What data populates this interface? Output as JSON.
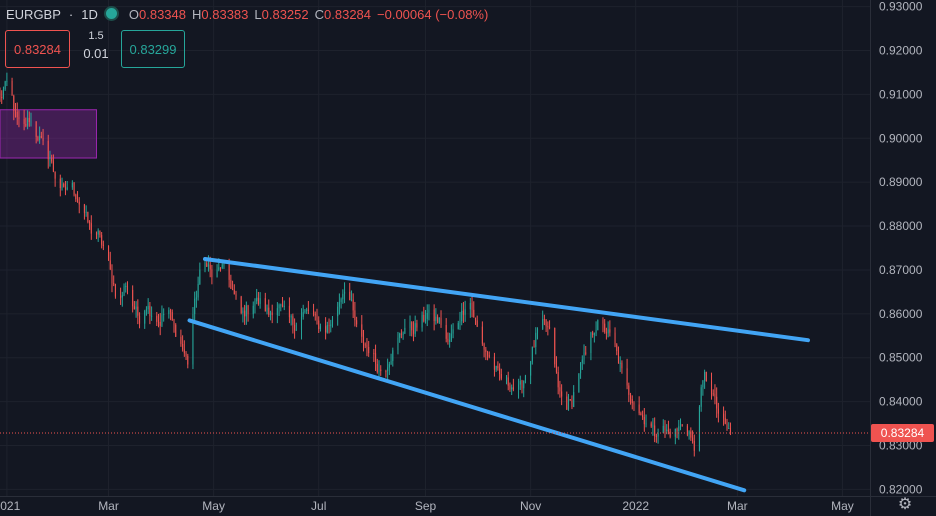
{
  "header": {
    "symbol": "EURGBP",
    "interval": "1D",
    "open_label": "O",
    "open": "0.83348",
    "high_label": "H",
    "high": "0.83383",
    "low_label": "L",
    "low": "0.83252",
    "close_label": "C",
    "close": "0.83284",
    "change": "−0.00064 (−0.08%)"
  },
  "trade": {
    "sell": "0.83284",
    "spread_top": "1.5",
    "spread_bottom": "0.01",
    "buy": "0.83299"
  },
  "colors": {
    "background": "#131722",
    "up": "#26a69a",
    "down": "#ef5350",
    "trendline": "#42a5f5",
    "zone": "#9c27b0",
    "grid": "#1e222d"
  },
  "chart_data": {
    "type": "candlestick",
    "ylim": [
      0.8185,
      0.9315
    ],
    "yticks": [
      "0.93000",
      "0.92000",
      "0.91000",
      "0.90000",
      "0.89000",
      "0.88000",
      "0.87000",
      "0.86000",
      "0.85000",
      "0.84000",
      "0.83000",
      "0.82000"
    ],
    "ytick_values": [
      0.93,
      0.92,
      0.91,
      0.9,
      0.89,
      0.88,
      0.87,
      0.86,
      0.85,
      0.84,
      0.83,
      0.82
    ],
    "xlim": [
      "2020-12-28",
      "2022-05-17"
    ],
    "xticks": [
      {
        "label": "2021",
        "date": "2021-01-01"
      },
      {
        "label": "Mar",
        "date": "2021-03-01"
      },
      {
        "label": "May",
        "date": "2021-05-01"
      },
      {
        "label": "Jul",
        "date": "2021-07-01"
      },
      {
        "label": "Sep",
        "date": "2021-09-01"
      },
      {
        "label": "Nov",
        "date": "2021-11-01"
      },
      {
        "label": "2022",
        "date": "2022-01-01"
      },
      {
        "label": "Mar",
        "date": "2022-03-01"
      },
      {
        "label": "May",
        "date": "2022-05-01"
      }
    ],
    "last_price": "0.83284",
    "last_price_value": 0.83284,
    "close_path": [
      [
        "2020-12-28",
        0.909
      ],
      [
        "2021-01-02",
        0.9135
      ],
      [
        "2021-01-06",
        0.905
      ],
      [
        "2021-01-10",
        0.902
      ],
      [
        "2021-01-14",
        0.9045
      ],
      [
        "2021-01-18",
        0.901
      ],
      [
        "2021-01-22",
        0.8985
      ],
      [
        "2021-01-26",
        0.8955
      ],
      [
        "2021-01-30",
        0.89
      ],
      [
        "2021-02-03",
        0.888
      ],
      [
        "2021-02-07",
        0.89
      ],
      [
        "2021-02-11",
        0.886
      ],
      [
        "2021-02-15",
        0.883
      ],
      [
        "2021-02-19",
        0.879
      ],
      [
        "2021-02-23",
        0.878
      ],
      [
        "2021-02-27",
        0.8745
      ],
      [
        "2021-03-03",
        0.868
      ],
      [
        "2021-03-07",
        0.862
      ],
      [
        "2021-03-11",
        0.867
      ],
      [
        "2021-03-15",
        0.862
      ],
      [
        "2021-03-19",
        0.859
      ],
      [
        "2021-03-23",
        0.862
      ],
      [
        "2021-03-27",
        0.8595
      ],
      [
        "2021-03-31",
        0.858
      ],
      [
        "2021-04-04",
        0.862
      ],
      [
        "2021-04-08",
        0.857
      ],
      [
        "2021-04-12",
        0.853
      ],
      [
        "2021-04-16",
        0.849
      ],
      [
        "2021-04-19",
        0.86
      ],
      [
        "2021-04-23",
        0.869
      ],
      [
        "2021-04-27",
        0.872
      ],
      [
        "2021-05-01",
        0.8675
      ],
      [
        "2021-05-05",
        0.871
      ],
      [
        "2021-05-09",
        0.869
      ],
      [
        "2021-05-13",
        0.864
      ],
      [
        "2021-05-17",
        0.86
      ],
      [
        "2021-05-21",
        0.861
      ],
      [
        "2021-05-25",
        0.863
      ],
      [
        "2021-05-29",
        0.8625
      ],
      [
        "2021-06-02",
        0.86
      ],
      [
        "2021-06-06",
        0.862
      ],
      [
        "2021-06-10",
        0.861
      ],
      [
        "2021-06-14",
        0.859
      ],
      [
        "2021-06-18",
        0.857
      ],
      [
        "2021-06-22",
        0.86
      ],
      [
        "2021-06-26",
        0.861
      ],
      [
        "2021-06-30",
        0.858
      ],
      [
        "2021-07-04",
        0.856
      ],
      [
        "2021-07-08",
        0.858
      ],
      [
        "2021-07-12",
        0.862
      ],
      [
        "2021-07-16",
        0.866
      ],
      [
        "2021-07-20",
        0.862
      ],
      [
        "2021-07-24",
        0.855
      ],
      [
        "2021-07-28",
        0.853
      ],
      [
        "2021-08-01",
        0.851
      ],
      [
        "2021-08-05",
        0.847
      ],
      [
        "2021-08-09",
        0.848
      ],
      [
        "2021-08-13",
        0.851
      ],
      [
        "2021-08-17",
        0.855
      ],
      [
        "2021-08-21",
        0.8575
      ],
      [
        "2021-08-25",
        0.8565
      ],
      [
        "2021-08-29",
        0.858
      ],
      [
        "2021-09-02",
        0.86
      ],
      [
        "2021-09-06",
        0.859
      ],
      [
        "2021-09-10",
        0.858
      ],
      [
        "2021-09-14",
        0.853
      ],
      [
        "2021-09-18",
        0.857
      ],
      [
        "2021-09-22",
        0.86
      ],
      [
        "2021-09-26",
        0.864
      ],
      [
        "2021-09-30",
        0.858
      ],
      [
        "2021-10-04",
        0.853
      ],
      [
        "2021-10-08",
        0.85
      ],
      [
        "2021-10-12",
        0.847
      ],
      [
        "2021-10-16",
        0.845
      ],
      [
        "2021-10-20",
        0.844
      ],
      [
        "2021-10-24",
        0.842
      ],
      [
        "2021-10-28",
        0.845
      ],
      [
        "2021-11-01",
        0.85
      ],
      [
        "2021-11-05",
        0.856
      ],
      [
        "2021-11-09",
        0.858
      ],
      [
        "2021-11-13",
        0.855
      ],
      [
        "2021-11-17",
        0.843
      ],
      [
        "2021-11-21",
        0.839
      ],
      [
        "2021-11-25",
        0.84
      ],
      [
        "2021-11-29",
        0.847
      ],
      [
        "2021-12-03",
        0.851
      ],
      [
        "2021-12-07",
        0.856
      ],
      [
        "2021-12-11",
        0.858
      ],
      [
        "2021-12-15",
        0.856
      ],
      [
        "2021-12-19",
        0.854
      ],
      [
        "2021-12-23",
        0.848
      ],
      [
        "2021-12-27",
        0.843
      ],
      [
        "2021-12-31",
        0.84
      ],
      [
        "2022-01-04",
        0.837
      ],
      [
        "2022-01-08",
        0.835
      ],
      [
        "2022-01-12",
        0.833
      ],
      [
        "2022-01-16",
        0.834
      ],
      [
        "2022-01-20",
        0.833
      ],
      [
        "2022-01-24",
        0.833
      ],
      [
        "2022-01-28",
        0.835
      ],
      [
        "2022-02-01",
        0.833
      ],
      [
        "2022-02-04",
        0.829
      ],
      [
        "2022-02-07",
        0.84
      ],
      [
        "2022-02-10",
        0.846
      ],
      [
        "2022-02-13",
        0.844
      ],
      [
        "2022-02-16",
        0.84
      ],
      [
        "2022-02-19",
        0.836
      ],
      [
        "2022-02-22",
        0.8345
      ],
      [
        "2022-02-25",
        0.833
      ]
    ],
    "trendlines": [
      {
        "from": [
          "2021-04-26",
          0.8725
        ],
        "to": [
          "2022-04-11",
          0.854
        ]
      },
      {
        "from": [
          "2021-04-17",
          0.8585
        ],
        "to": [
          "2022-03-05",
          0.8198
        ]
      }
    ],
    "zones": [
      {
        "from": [
          "2020-12-28",
          0.9065
        ],
        "to": [
          "2021-02-22",
          0.8955
        ]
      }
    ]
  }
}
